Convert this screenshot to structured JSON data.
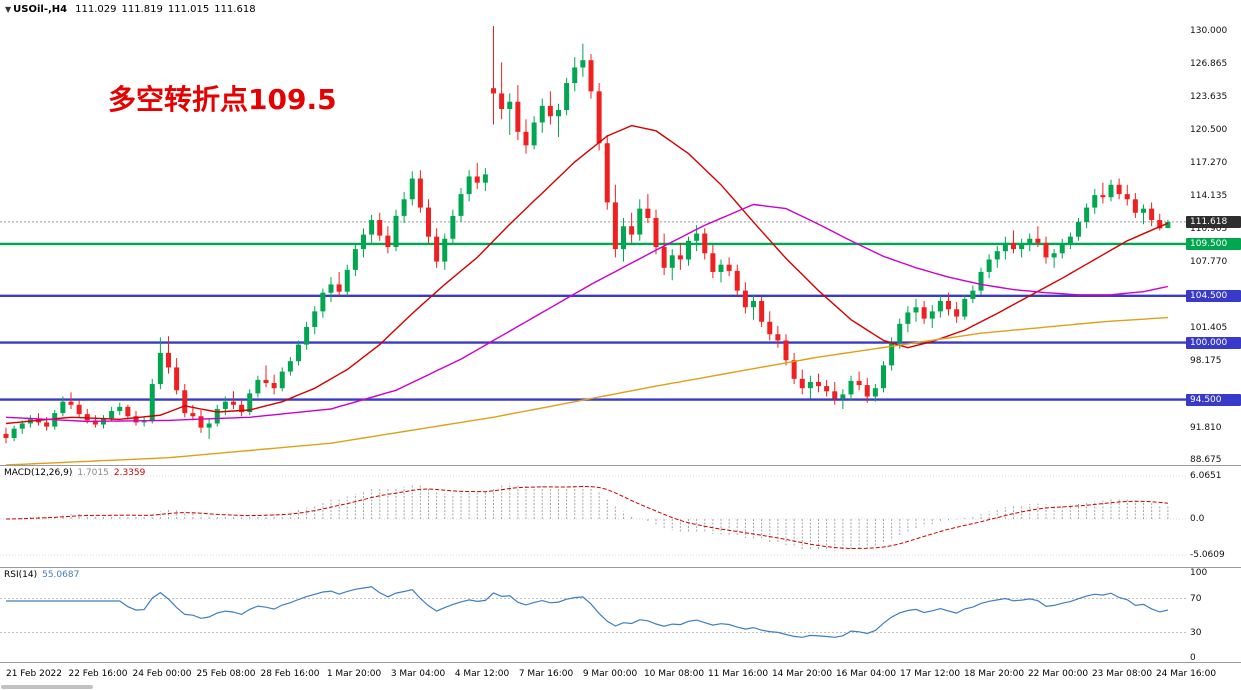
{
  "window": {
    "symbol_tf": "USOil-,H4",
    "ohlc": {
      "open": "111.029",
      "high": "111.819",
      "low": "111.015",
      "close": "111.618"
    }
  },
  "annotation": {
    "text": "多空转折点109.5",
    "color": "#e60000"
  },
  "chart_data": {
    "type": "candlestick",
    "symbol": "USOil",
    "timeframe": "H4",
    "ylim": [
      88.2,
      133.0
    ],
    "colors": {
      "up": "#00a650",
      "down": "#f02020"
    },
    "current_price": 111.618,
    "current_price_label": "111.618",
    "price_axis_labels": [
      "130.000",
      "126.865",
      "123.635",
      "120.500",
      "117.270",
      "114.135",
      "110.905",
      "107.770",
      "101.405",
      "98.175",
      "91.810",
      "88.675"
    ],
    "hlines": [
      {
        "price": 109.5,
        "color": "#00a650",
        "label": "109.500"
      },
      {
        "price": 104.5,
        "color": "#3a3ac8",
        "label": "104.500"
      },
      {
        "price": 100.0,
        "color": "#3a3ac8",
        "label": "100.000"
      },
      {
        "price": 94.5,
        "color": "#3a3ac8",
        "label": "94.500"
      }
    ],
    "time_axis_labels": [
      "21 Feb 2022",
      "22 Feb 16:00",
      "24 Feb 00:00",
      "25 Feb 08:00",
      "28 Feb 16:00",
      "1 Mar 20:00",
      "3 Mar 04:00",
      "4 Mar 12:00",
      "7 Mar 16:00",
      "9 Mar 00:00",
      "10 Mar 08:00",
      "11 Mar 16:00",
      "14 Mar 20:00",
      "16 Mar 04:00",
      "17 Mar 12:00",
      "18 Mar 20:00",
      "22 Mar 00:00",
      "23 Mar 08:00",
      "24 Mar 16:00"
    ],
    "candles": [
      [
        91.2,
        91.8,
        90.3,
        90.8
      ],
      [
        90.8,
        92.0,
        90.5,
        91.7
      ],
      [
        91.7,
        92.5,
        91.2,
        92.2
      ],
      [
        92.2,
        93.0,
        91.8,
        92.6
      ],
      [
        92.6,
        93.2,
        92.0,
        92.3
      ],
      [
        92.3,
        92.8,
        91.5,
        91.9
      ],
      [
        91.9,
        93.5,
        91.6,
        93.2
      ],
      [
        93.2,
        94.8,
        92.9,
        94.3
      ],
      [
        94.3,
        95.2,
        93.6,
        94.0
      ],
      [
        94.0,
        94.4,
        92.8,
        93.1
      ],
      [
        93.1,
        93.6,
        92.2,
        92.5
      ],
      [
        92.5,
        93.0,
        91.8,
        92.1
      ],
      [
        92.1,
        93.0,
        91.7,
        92.7
      ],
      [
        92.7,
        93.8,
        92.4,
        93.4
      ],
      [
        93.4,
        94.2,
        93.0,
        93.8
      ],
      [
        93.8,
        94.0,
        92.6,
        92.9
      ],
      [
        92.9,
        93.4,
        92.0,
        92.3
      ],
      [
        92.3,
        92.8,
        91.9,
        92.4
      ],
      [
        92.4,
        96.5,
        92.2,
        96.0
      ],
      [
        96.0,
        100.5,
        95.5,
        99.0
      ],
      [
        99.0,
        100.6,
        97.0,
        97.6
      ],
      [
        97.6,
        98.5,
        95.0,
        95.4
      ],
      [
        95.4,
        96.0,
        92.8,
        93.2
      ],
      [
        93.2,
        94.0,
        92.5,
        92.9
      ],
      [
        92.9,
        93.5,
        91.3,
        91.8
      ],
      [
        91.8,
        92.6,
        90.7,
        92.2
      ],
      [
        92.2,
        94.0,
        91.9,
        93.6
      ],
      [
        93.6,
        94.8,
        93.0,
        94.3
      ],
      [
        94.3,
        95.3,
        93.6,
        94.0
      ],
      [
        94.0,
        94.5,
        92.9,
        93.3
      ],
      [
        93.3,
        95.5,
        93.0,
        95.1
      ],
      [
        95.1,
        96.8,
        94.7,
        96.4
      ],
      [
        96.4,
        97.8,
        95.7,
        96.1
      ],
      [
        96.1,
        96.9,
        95.0,
        95.6
      ],
      [
        95.6,
        97.6,
        95.3,
        97.2
      ],
      [
        97.2,
        98.6,
        96.8,
        98.2
      ],
      [
        98.2,
        100.2,
        97.8,
        99.8
      ],
      [
        99.8,
        102.0,
        99.3,
        101.5
      ],
      [
        101.5,
        103.5,
        100.8,
        103.0
      ],
      [
        103.0,
        105.2,
        102.4,
        104.8
      ],
      [
        104.8,
        106.3,
        103.9,
        105.6
      ],
      [
        105.6,
        106.8,
        104.4,
        104.9
      ],
      [
        104.9,
        107.5,
        104.5,
        107.0
      ],
      [
        107.0,
        109.5,
        106.4,
        109.0
      ],
      [
        109.0,
        111.0,
        108.2,
        110.4
      ],
      [
        110.4,
        112.3,
        109.6,
        111.8
      ],
      [
        111.8,
        112.5,
        109.8,
        110.3
      ],
      [
        110.3,
        111.2,
        108.6,
        109.2
      ],
      [
        109.2,
        112.8,
        108.8,
        112.2
      ],
      [
        112.2,
        114.5,
        111.5,
        113.8
      ],
      [
        113.8,
        116.5,
        113.2,
        115.8
      ],
      [
        115.8,
        116.6,
        112.5,
        113.0
      ],
      [
        113.0,
        113.8,
        109.5,
        110.2
      ],
      [
        110.2,
        111.0,
        107.2,
        107.8
      ],
      [
        107.8,
        110.5,
        107.0,
        110.0
      ],
      [
        110.0,
        112.8,
        109.4,
        112.2
      ],
      [
        112.2,
        114.9,
        111.6,
        114.3
      ],
      [
        114.3,
        116.6,
        113.6,
        116.0
      ],
      [
        116.0,
        117.3,
        114.8,
        115.4
      ],
      [
        115.4,
        116.8,
        114.6,
        116.2
      ],
      [
        124.5,
        130.5,
        121.0,
        124.0
      ],
      [
        124.0,
        127.0,
        121.5,
        122.5
      ],
      [
        122.5,
        124.0,
        120.0,
        123.2
      ],
      [
        123.2,
        124.8,
        119.5,
        120.3
      ],
      [
        120.3,
        121.5,
        118.2,
        119.0
      ],
      [
        119.0,
        121.8,
        118.6,
        121.2
      ],
      [
        121.2,
        123.5,
        120.2,
        122.8
      ],
      [
        122.8,
        124.2,
        121.0,
        121.8
      ],
      [
        121.8,
        123.0,
        119.8,
        122.4
      ],
      [
        122.4,
        125.5,
        121.9,
        125.0
      ],
      [
        125.0,
        127.5,
        124.2,
        126.5
      ],
      [
        126.5,
        128.8,
        125.6,
        127.2
      ],
      [
        127.2,
        127.8,
        123.5,
        124.2
      ],
      [
        124.2,
        125.0,
        118.5,
        119.2
      ],
      [
        119.2,
        120.0,
        112.8,
        113.5
      ],
      [
        113.5,
        115.2,
        108.2,
        109.0
      ],
      [
        109.0,
        112.0,
        107.8,
        111.2
      ],
      [
        111.2,
        112.5,
        109.6,
        110.4
      ],
      [
        110.4,
        113.8,
        109.8,
        112.9
      ],
      [
        112.9,
        114.3,
        111.5,
        112.0
      ],
      [
        112.0,
        112.8,
        108.5,
        109.2
      ],
      [
        109.2,
        110.5,
        106.5,
        107.2
      ],
      [
        107.2,
        109.0,
        106.0,
        108.4
      ],
      [
        108.4,
        109.6,
        107.0,
        108.0
      ],
      [
        108.0,
        110.2,
        107.4,
        109.8
      ],
      [
        109.8,
        111.3,
        108.8,
        110.5
      ],
      [
        110.5,
        111.0,
        108.0,
        108.6
      ],
      [
        108.6,
        109.4,
        106.2,
        106.8
      ],
      [
        106.8,
        108.0,
        105.8,
        107.5
      ],
      [
        107.5,
        108.2,
        106.4,
        106.9
      ],
      [
        106.9,
        107.5,
        104.5,
        105.0
      ],
      [
        105.0,
        105.8,
        102.8,
        103.4
      ],
      [
        103.4,
        104.6,
        102.2,
        104.0
      ],
      [
        104.0,
        104.4,
        101.5,
        102.0
      ],
      [
        102.0,
        103.0,
        100.2,
        100.8
      ],
      [
        100.8,
        101.6,
        99.5,
        100.2
      ],
      [
        100.2,
        100.8,
        97.8,
        98.3
      ],
      [
        98.3,
        99.0,
        96.0,
        96.5
      ],
      [
        96.5,
        97.4,
        95.0,
        95.6
      ],
      [
        95.6,
        96.8,
        94.6,
        96.2
      ],
      [
        96.2,
        97.0,
        95.2,
        95.8
      ],
      [
        95.8,
        96.4,
        94.8,
        95.3
      ],
      [
        95.3,
        96.2,
        94.0,
        94.6
      ],
      [
        94.6,
        95.5,
        93.6,
        95.0
      ],
      [
        95.0,
        96.8,
        94.4,
        96.3
      ],
      [
        96.3,
        97.2,
        95.4,
        95.9
      ],
      [
        95.9,
        96.6,
        94.2,
        94.8
      ],
      [
        94.8,
        96.0,
        94.3,
        95.6
      ],
      [
        95.6,
        98.2,
        95.2,
        97.8
      ],
      [
        97.8,
        100.5,
        97.3,
        100.0
      ],
      [
        100.0,
        102.3,
        99.4,
        101.8
      ],
      [
        101.8,
        103.5,
        101.0,
        102.9
      ],
      [
        102.9,
        104.2,
        102.0,
        103.4
      ],
      [
        103.4,
        104.0,
        101.8,
        102.3
      ],
      [
        102.3,
        103.6,
        101.4,
        103.0
      ],
      [
        103.0,
        104.5,
        102.4,
        104.0
      ],
      [
        104.0,
        104.8,
        102.6,
        103.2
      ],
      [
        103.2,
        103.9,
        101.9,
        102.5
      ],
      [
        102.5,
        104.6,
        102.2,
        104.2
      ],
      [
        104.2,
        105.5,
        103.8,
        105.0
      ],
      [
        105.0,
        107.2,
        104.6,
        106.8
      ],
      [
        106.8,
        108.5,
        106.2,
        108.0
      ],
      [
        108.0,
        109.3,
        107.2,
        108.8
      ],
      [
        108.8,
        110.2,
        108.0,
        109.6
      ],
      [
        109.6,
        110.8,
        108.6,
        109.0
      ],
      [
        109.0,
        110.0,
        108.2,
        109.4
      ],
      [
        109.4,
        110.5,
        108.8,
        110.0
      ],
      [
        110.0,
        111.2,
        109.2,
        109.6
      ],
      [
        109.6,
        110.2,
        107.6,
        108.2
      ],
      [
        108.2,
        109.0,
        107.2,
        108.6
      ],
      [
        108.6,
        110.0,
        108.1,
        109.5
      ],
      [
        109.5,
        110.6,
        109.0,
        110.2
      ],
      [
        110.2,
        112.0,
        109.8,
        111.6
      ],
      [
        111.6,
        113.4,
        111.0,
        113.0
      ],
      [
        113.0,
        114.8,
        112.4,
        114.2
      ],
      [
        114.2,
        115.4,
        113.4,
        114.0
      ],
      [
        114.0,
        115.7,
        113.6,
        115.2
      ],
      [
        115.2,
        115.8,
        113.8,
        114.3
      ],
      [
        114.3,
        115.2,
        113.2,
        113.8
      ],
      [
        113.8,
        114.4,
        112.0,
        112.5
      ],
      [
        112.5,
        113.3,
        111.4,
        112.9
      ],
      [
        112.9,
        113.5,
        111.2,
        111.8
      ],
      [
        111.8,
        112.4,
        110.8,
        111.0
      ],
      [
        111.029,
        111.819,
        111.015,
        111.618
      ]
    ],
    "ma_lines": [
      {
        "name": "fast-ma-line",
        "color": "#d40000",
        "points": [
          [
            0,
            92.2
          ],
          [
            8,
            92.8
          ],
          [
            14,
            92.6
          ],
          [
            19,
            93.0
          ],
          [
            22,
            93.9
          ],
          [
            26,
            93.3
          ],
          [
            30,
            93.5
          ],
          [
            34,
            94.3
          ],
          [
            38,
            95.6
          ],
          [
            42,
            97.4
          ],
          [
            46,
            99.8
          ],
          [
            50,
            102.8
          ],
          [
            54,
            105.6
          ],
          [
            58,
            108.2
          ],
          [
            62,
            111.4
          ],
          [
            66,
            114.4
          ],
          [
            70,
            117.4
          ],
          [
            74,
            119.9
          ],
          [
            77,
            120.9
          ],
          [
            80,
            120.4
          ],
          [
            84,
            118.2
          ],
          [
            88,
            115.2
          ],
          [
            92,
            111.6
          ],
          [
            96,
            108.1
          ],
          [
            100,
            105.0
          ],
          [
            104,
            102.2
          ],
          [
            108,
            100.2
          ],
          [
            111,
            99.5
          ],
          [
            114,
            100.1
          ],
          [
            118,
            101.2
          ],
          [
            122,
            102.8
          ],
          [
            126,
            104.5
          ],
          [
            130,
            106.2
          ],
          [
            134,
            108.0
          ],
          [
            138,
            109.8
          ],
          [
            143,
            111.5
          ]
        ]
      },
      {
        "name": "mid-ma-line",
        "color": "#cc00cc",
        "points": [
          [
            0,
            92.8
          ],
          [
            10,
            92.4
          ],
          [
            20,
            92.5
          ],
          [
            30,
            92.8
          ],
          [
            40,
            93.6
          ],
          [
            48,
            95.4
          ],
          [
            56,
            98.4
          ],
          [
            64,
            102.0
          ],
          [
            72,
            105.6
          ],
          [
            80,
            108.9
          ],
          [
            86,
            111.3
          ],
          [
            92,
            113.3
          ],
          [
            96,
            112.9
          ],
          [
            100,
            111.4
          ],
          [
            104,
            109.8
          ],
          [
            108,
            108.3
          ],
          [
            112,
            107.2
          ],
          [
            116,
            106.3
          ],
          [
            120,
            105.6
          ],
          [
            124,
            105.1
          ],
          [
            128,
            104.8
          ],
          [
            132,
            104.6
          ],
          [
            136,
            104.6
          ],
          [
            140,
            104.9
          ],
          [
            143,
            105.4
          ]
        ]
      },
      {
        "name": "slow-ma-line",
        "color": "#dfa018",
        "points": [
          [
            0,
            88.2
          ],
          [
            20,
            88.9
          ],
          [
            40,
            90.3
          ],
          [
            60,
            92.8
          ],
          [
            80,
            95.8
          ],
          [
            100,
            98.6
          ],
          [
            120,
            100.9
          ],
          [
            135,
            102.0
          ],
          [
            143,
            102.4
          ]
        ]
      }
    ],
    "macd": {
      "label": "MACD(12,26,9)",
      "main_value": "1.7015",
      "signal_value": "2.3359",
      "fast": 12,
      "slow": 26,
      "signal": 9,
      "axis_labels": [
        "6.0651",
        "0.0",
        "-5.0609"
      ]
    },
    "rsi": {
      "label": "RSI(14)",
      "value": "55.0687",
      "period": 14,
      "levels": [
        70,
        30
      ],
      "axis_labels": [
        "100",
        "70",
        "30",
        "0"
      ]
    }
  }
}
